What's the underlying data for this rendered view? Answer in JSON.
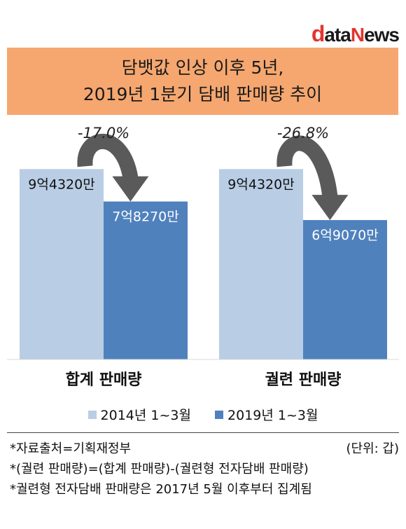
{
  "logo": {
    "d": "d",
    "ata": "ata",
    "n": "N",
    "ews": "ews"
  },
  "title": {
    "line1": "담뱃값 인상 이후 5년,",
    "line2": "2019년 1분기 담배 판매량 추이"
  },
  "colors": {
    "series_2014": "#b9cde5",
    "series_2019": "#4f81bd",
    "title_bg": "#f5a76f",
    "arrow": "#5a5a5a"
  },
  "chart_data": {
    "type": "bar",
    "categories": [
      "합계 판매량",
      "궐련 판매량"
    ],
    "series": [
      {
        "name": "2014년 1~3월",
        "values": [
          94320,
          94320
        ],
        "labels": [
          "9억4320만",
          "9억4320만"
        ]
      },
      {
        "name": "2019년 1~3월",
        "values": [
          78270,
          69070
        ],
        "labels": [
          "7억8270만",
          "6억9070만"
        ]
      }
    ],
    "annotations": [
      "-17.0%",
      "-26.8%"
    ],
    "ylim": [
      0,
      100000
    ],
    "grid": false,
    "legend": "bottom"
  },
  "notes": {
    "source": "*자료출처=기획재정부",
    "unit": "(단위: 갑)",
    "line2": "*(궐련 판매량)=(합계 판매량)-(궐련형 전자담배 판매량)",
    "line3": "*궐련형 전자담배 판매량은 2017년 5월 이후부터 집계됨"
  }
}
